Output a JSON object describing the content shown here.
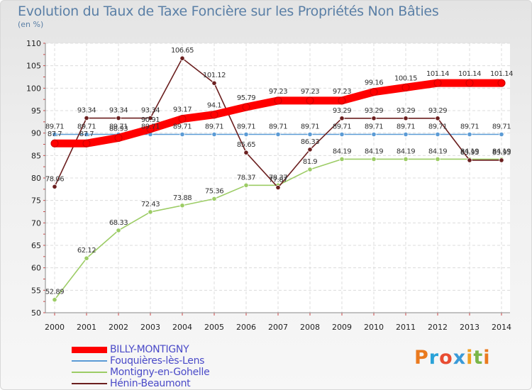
{
  "title": "Evolution du Taux de Taxe Foncière sur les Propriétés Non Bâties",
  "unit": "(en %)",
  "logo": "Proxiti",
  "chart_data": {
    "type": "line",
    "title": "Evolution du Taux de Taxe Foncière sur les Propriétés Non Bâties",
    "ylabel": "(en %)",
    "xlabel": "",
    "ylim": [
      50,
      110
    ],
    "yticks": [
      50,
      55,
      60,
      65,
      70,
      75,
      80,
      85,
      90,
      95,
      100,
      105,
      110
    ],
    "x": [
      "2000",
      "2001",
      "2002",
      "2003",
      "2004",
      "2005",
      "2006",
      "2007",
      "2008",
      "2009",
      "2010",
      "2011",
      "2012",
      "2013",
      "2014"
    ],
    "grid": true,
    "series": [
      {
        "name": "BILLY-MONTIGNY",
        "color": "#ff0000",
        "values": [
          87.7,
          87.7,
          88.93,
          90.91,
          93.17,
          94.1,
          95.79,
          97.23,
          97.23,
          97.23,
          99.16,
          100.15,
          101.14,
          101.14,
          101.14
        ],
        "labels": [
          "87.7",
          "87.7",
          "88.93",
          "90.91",
          "93.17",
          "94.1",
          "95.79",
          "97.23",
          "97.23",
          "97.23",
          "99.16",
          "100.15",
          "101.14",
          "101.14",
          "101.14"
        ]
      },
      {
        "name": "Fouquières-lès-Lens",
        "color": "#5b9bd5",
        "values": [
          89.71,
          89.71,
          89.71,
          89.71,
          89.71,
          89.71,
          89.71,
          89.71,
          89.71,
          89.71,
          89.71,
          89.71,
          89.71,
          89.71,
          89.71
        ],
        "labels": [
          "89.71",
          "89.71",
          "89.71",
          "89.71",
          "89.71",
          "89.71",
          "89.71",
          "89.71",
          "89.71",
          "89.71",
          "89.71",
          "89.71",
          "89.71",
          "89.71",
          "89.71"
        ]
      },
      {
        "name": "Montigny-en-Gohelle",
        "color": "#9ccc65",
        "values": [
          52.89,
          62.12,
          68.33,
          72.43,
          73.88,
          75.36,
          78.37,
          78.37,
          81.9,
          84.19,
          84.19,
          84.19,
          84.19,
          84.19,
          84.19
        ],
        "labels": [
          "52.89",
          "62.12",
          "68.33",
          "72.43",
          "73.88",
          "75.36",
          "78.37",
          "78.37",
          "81.9",
          "84.19",
          "84.19",
          "84.19",
          "84.19",
          "84.19",
          "84.19"
        ]
      },
      {
        "name": "Hénin-Beaumont",
        "color": "#6b1f1f",
        "values": [
          78.06,
          93.34,
          93.34,
          93.34,
          106.65,
          101.12,
          85.65,
          77.87,
          86.33,
          93.29,
          93.29,
          93.29,
          93.29,
          83.95,
          83.95
        ],
        "labels": [
          "78.06",
          "93.34",
          "93.34",
          "93.34",
          "106.65",
          "101.12",
          "85.65",
          "77.87",
          "86.33",
          "93.29",
          "93.29",
          "93.29",
          "93.29",
          "83.95",
          "83.95"
        ]
      }
    ]
  }
}
